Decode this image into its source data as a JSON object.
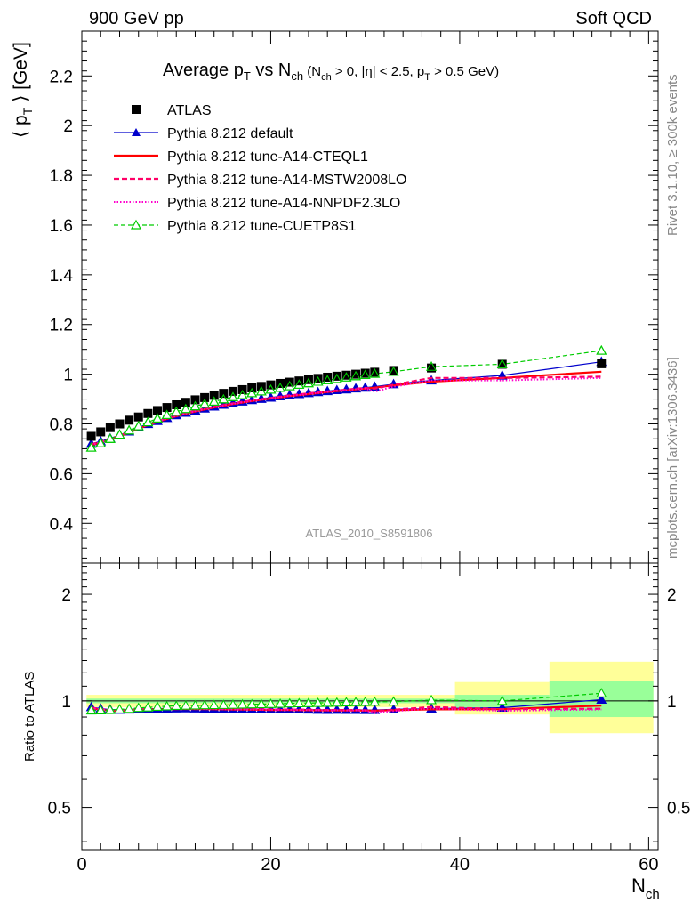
{
  "header": {
    "left": "900 GeV pp",
    "right": "Soft QCD"
  },
  "side_text": {
    "rivet": "Rivet 3.1.10, ≥ 300k events",
    "mcplots": "mcplots.cern.ch [arXiv:1306.3436]"
  },
  "title": {
    "main_a": "Average p",
    "main_sub": "T",
    "main_b": " vs N",
    "main_sub2": "ch",
    "cuts_a": " (N",
    "cuts_sub1": "ch",
    "cuts_b": " > 0, |η| < 2.5, p",
    "cuts_sub2": "T",
    "cuts_c": " > 0.5 GeV)"
  },
  "axes": {
    "ylabel_a": "⟨ p",
    "ylabel_sub": "T",
    "ylabel_b": " ⟩ [GeV]",
    "ratio_ylabel": "Ratio to ATLAS",
    "xlabel": "N",
    "xlabel_sub": "ch",
    "watermark": "ATLAS_2010_S8591806"
  },
  "legend": [
    {
      "label": "ATLAS"
    },
    {
      "label": "Pythia 8.212 default"
    },
    {
      "label": "Pythia 8.212 tune-A14-CTEQL1"
    },
    {
      "label": "Pythia 8.212 tune-A14-MSTW2008LO"
    },
    {
      "label": "Pythia 8.212 tune-A14-NNPDF2.3LO"
    },
    {
      "label": "Pythia 8.212 tune-CUETP8S1"
    }
  ],
  "colors": {
    "data": "#000000",
    "default": "#0000cc",
    "cteql1": "#ff0000",
    "mstw": "#ff0066",
    "nnpdf": "#ff00cc",
    "cuetp8s1": "#00cc00",
    "band_inner": "#99ff99",
    "band_outer": "#ffff99"
  },
  "chart_data": {
    "type": "scatter",
    "xlim": [
      0,
      61
    ],
    "ylim": [
      0.24,
      2.38
    ],
    "ratio_ylim": [
      0.38,
      2.45
    ],
    "ratio_log_y": true,
    "x_ticks": [
      0,
      20,
      40,
      60
    ],
    "y_ticks": [
      0.4,
      0.6,
      0.8,
      1,
      1.2,
      1.4,
      1.6,
      1.8,
      2,
      2.2
    ],
    "ratio_ticks": [
      0.5,
      1,
      2
    ],
    "ratio_tick_labels": [
      "0.5",
      "1",
      "2"
    ],
    "x": [
      1,
      2,
      3,
      4,
      5,
      6,
      7,
      8,
      9,
      10,
      11,
      12,
      13,
      14,
      15,
      16,
      17,
      18,
      19,
      20,
      21,
      22,
      23,
      24,
      25,
      26,
      27,
      28,
      29,
      30,
      31,
      33,
      37,
      44.5,
      55
    ],
    "series": [
      {
        "name": "ATLAS",
        "key": "data",
        "values": [
          0.75,
          0.768,
          0.785,
          0.8,
          0.815,
          0.828,
          0.842,
          0.854,
          0.866,
          0.877,
          0.887,
          0.897,
          0.906,
          0.915,
          0.923,
          0.931,
          0.938,
          0.945,
          0.951,
          0.957,
          0.963,
          0.968,
          0.973,
          0.978,
          0.983,
          0.988,
          0.992,
          0.996,
          1.0,
          1.004,
          1.008,
          1.015,
          1.025,
          1.04,
          1.042
        ]
      },
      {
        "name": "Pythia 8.212 default",
        "key": "default",
        "values": [
          0.72,
          0.73,
          0.742,
          0.755,
          0.77,
          0.786,
          0.8,
          0.812,
          0.824,
          0.835,
          0.845,
          0.854,
          0.862,
          0.87,
          0.877,
          0.884,
          0.89,
          0.896,
          0.901,
          0.906,
          0.911,
          0.916,
          0.92,
          0.924,
          0.928,
          0.932,
          0.936,
          0.939,
          0.943,
          0.946,
          0.95,
          0.96,
          0.975,
          0.995,
          1.05
        ]
      },
      {
        "name": "Pythia 8.212 tune-A14-CTEQL1",
        "key": "cteql1",
        "values": [
          0.715,
          0.725,
          0.737,
          0.75,
          0.765,
          0.781,
          0.795,
          0.808,
          0.82,
          0.831,
          0.841,
          0.85,
          0.858,
          0.866,
          0.873,
          0.88,
          0.886,
          0.892,
          0.897,
          0.902,
          0.907,
          0.912,
          0.916,
          0.92,
          0.924,
          0.928,
          0.932,
          0.935,
          0.939,
          0.942,
          0.946,
          0.955,
          0.97,
          0.985,
          1.01
        ]
      },
      {
        "name": "Pythia 8.212 tune-A14-MSTW2008LO",
        "key": "mstw",
        "values": [
          0.718,
          0.728,
          0.74,
          0.753,
          0.768,
          0.784,
          0.798,
          0.811,
          0.823,
          0.834,
          0.844,
          0.853,
          0.861,
          0.869,
          0.876,
          0.883,
          0.889,
          0.895,
          0.9,
          0.905,
          0.91,
          0.915,
          0.919,
          0.923,
          0.927,
          0.931,
          0.935,
          0.938,
          0.942,
          0.945,
          0.942,
          0.958,
          0.985,
          0.985,
          0.99
        ]
      },
      {
        "name": "Pythia 8.212 tune-A14-NNPDF2.3LO",
        "key": "nnpdf",
        "values": [
          0.716,
          0.726,
          0.738,
          0.751,
          0.766,
          0.782,
          0.796,
          0.809,
          0.821,
          0.832,
          0.842,
          0.851,
          0.859,
          0.867,
          0.874,
          0.881,
          0.887,
          0.893,
          0.898,
          0.903,
          0.908,
          0.913,
          0.917,
          0.921,
          0.925,
          0.929,
          0.933,
          0.936,
          0.94,
          0.943,
          0.93,
          0.95,
          0.975,
          0.975,
          0.985
        ]
      },
      {
        "name": "Pythia 8.212 tune-CUETP8S1",
        "key": "cuetp8s1",
        "values": [
          0.705,
          0.722,
          0.74,
          0.757,
          0.774,
          0.791,
          0.807,
          0.822,
          0.836,
          0.849,
          0.86,
          0.871,
          0.881,
          0.89,
          0.899,
          0.908,
          0.916,
          0.924,
          0.931,
          0.938,
          0.945,
          0.952,
          0.958,
          0.964,
          0.97,
          0.976,
          0.981,
          0.987,
          0.992,
          0.997,
          1.002,
          1.01,
          1.03,
          1.04,
          1.095
        ]
      }
    ],
    "bands": [
      {
        "x0": 0.5,
        "x1": 39.5,
        "inner": [
          0.985,
          1.015
        ],
        "outer": [
          0.96,
          1.04
        ]
      },
      {
        "x0": 39.5,
        "x1": 49.5,
        "inner": [
          0.96,
          1.04
        ],
        "outer": [
          0.915,
          1.13
        ]
      },
      {
        "x0": 49.5,
        "x1": 60.5,
        "inner": [
          0.9,
          1.14
        ],
        "outer": [
          0.81,
          1.29
        ]
      }
    ]
  }
}
